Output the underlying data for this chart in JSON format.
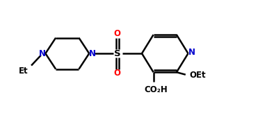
{
  "bg_color": "#ffffff",
  "line_color": "#000000",
  "N_color": "#0000cd",
  "O_color": "#ff0000",
  "S_color": "#000000",
  "bond_lw": 1.8,
  "fig_width": 3.71,
  "fig_height": 1.89,
  "xlim": [
    0,
    10
  ],
  "ylim": [
    0,
    5.4
  ]
}
